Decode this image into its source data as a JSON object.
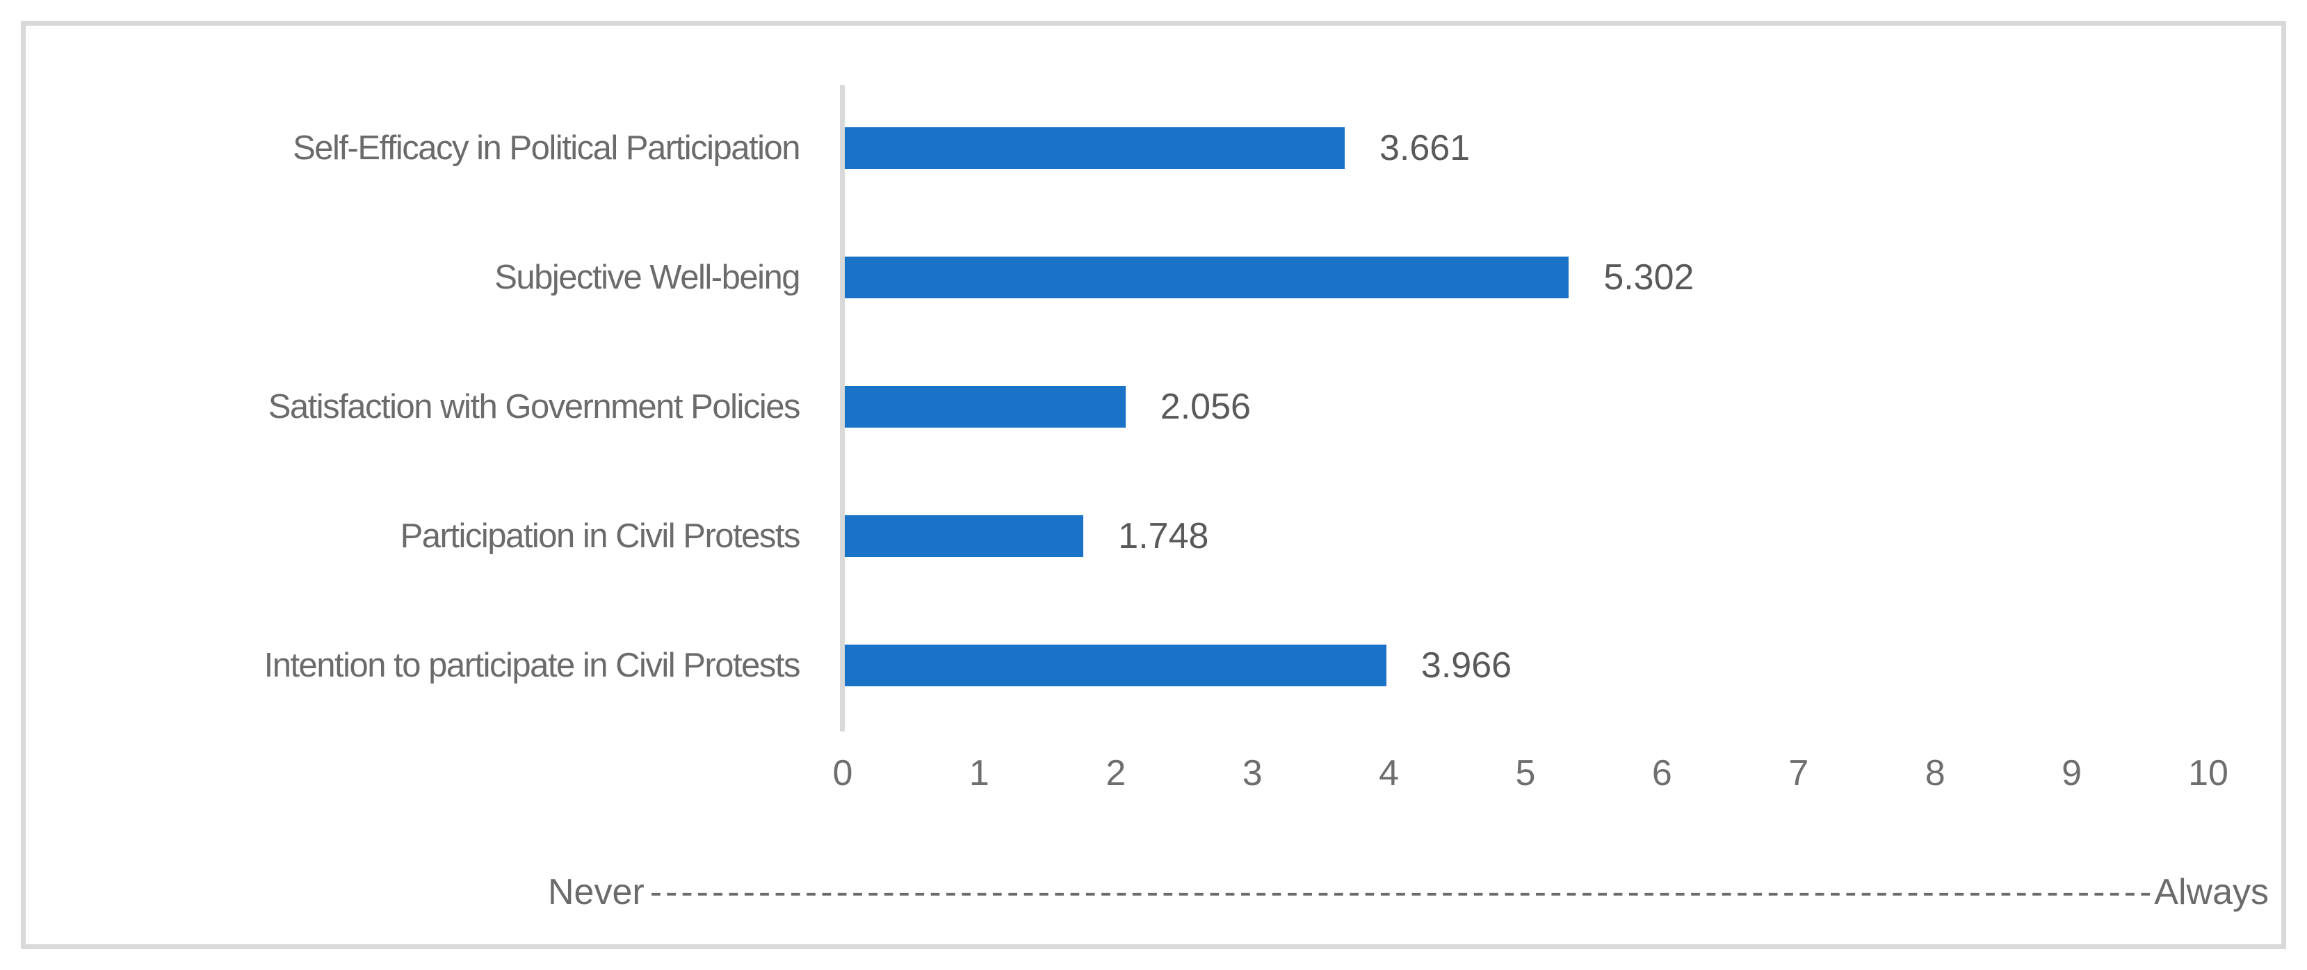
{
  "chart_data": {
    "type": "bar",
    "orientation": "horizontal",
    "title": "",
    "categories": [
      "Self-Efficacy in Political Participation",
      "Subjective Well-being",
      "Satisfaction with Government Policies",
      "Participation in Civil Protests",
      "Intention to participate in Civil Protests"
    ],
    "values": [
      3.661,
      5.302,
      2.056,
      1.748,
      3.966
    ],
    "data_labels": [
      "3.661",
      "5.302",
      "2.056",
      "1.748",
      "3.966"
    ],
    "xlim": [
      0,
      10
    ],
    "x_ticks": [
      "0",
      "1",
      "2",
      "3",
      "4",
      "5",
      "6",
      "7",
      "8",
      "9",
      "10"
    ],
    "grid": "off",
    "legend": "none",
    "axis_annotation": {
      "left": "Never",
      "dashes": "------------------------------------------------------------------------------------------------------------------------",
      "right": "Always"
    }
  },
  "colors": {
    "bar_fill": "#1b73c8",
    "frame_border": "#d9d9d9",
    "axis_line": "#d9d9d9",
    "category_text": "#6b6b6b",
    "value_text": "#595959",
    "tick_text": "#6e6e6e"
  }
}
